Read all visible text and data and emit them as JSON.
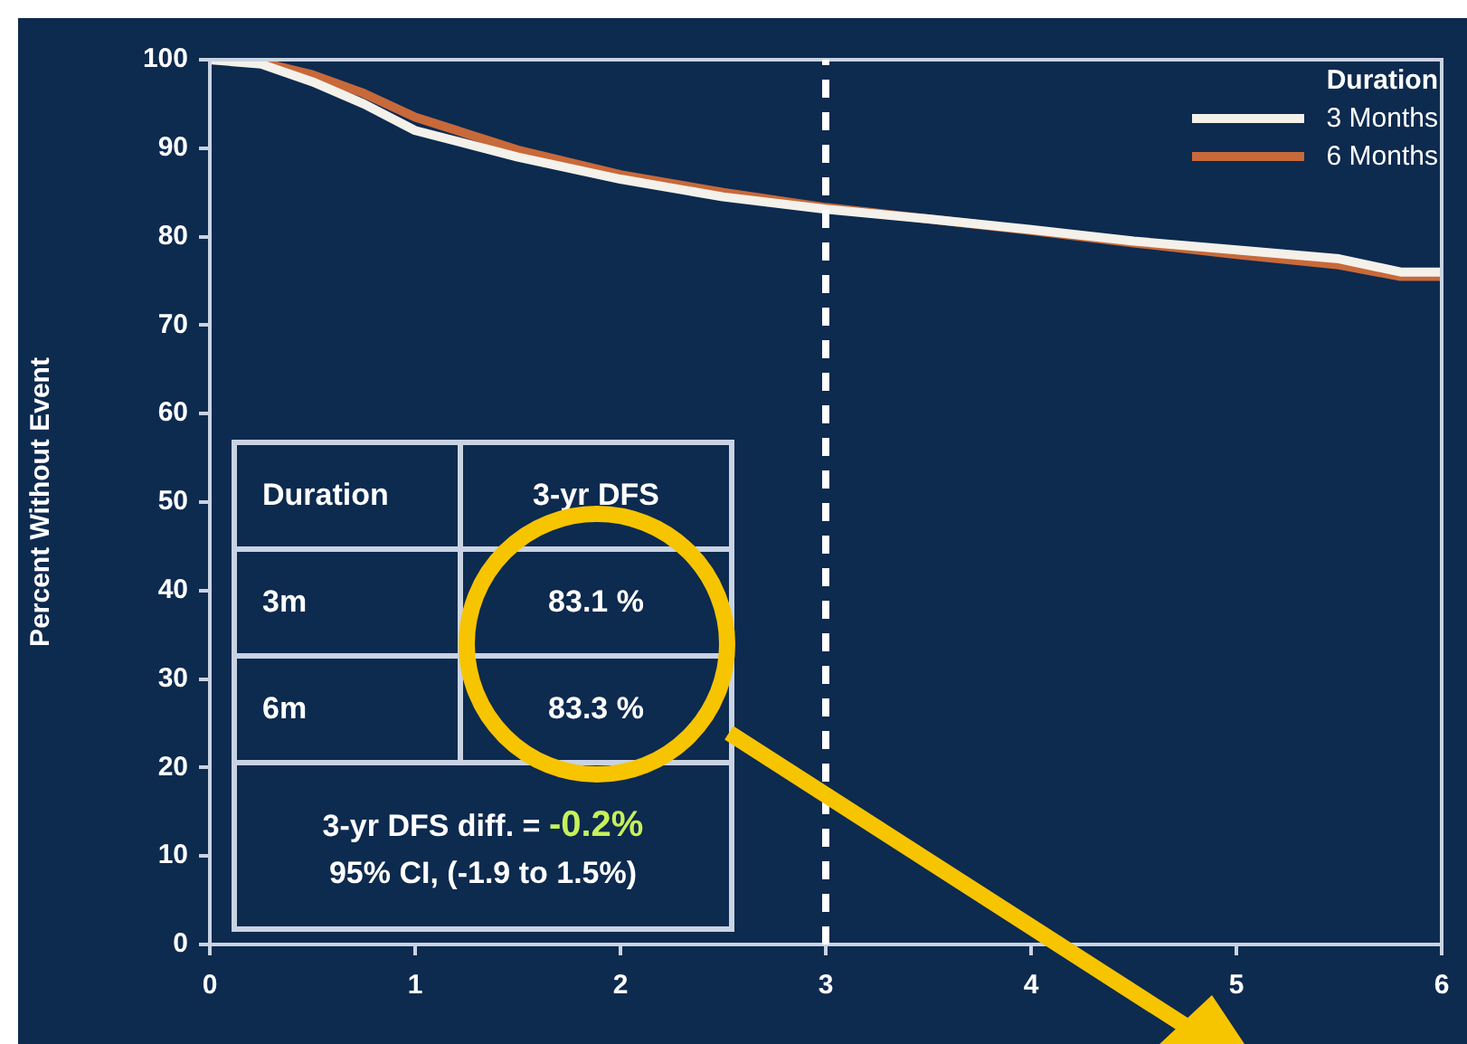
{
  "chart_data": {
    "type": "line",
    "ylabel": "Percent Without Event",
    "legend_title": "Duration",
    "legend": "top right",
    "grid": false,
    "marker": "none",
    "line_style": "solid",
    "x": [
      0,
      0.25,
      0.5,
      0.75,
      1,
      1.5,
      2,
      2.5,
      3,
      3.5,
      4,
      4.5,
      5,
      5.5,
      5.8,
      6
    ],
    "series": [
      {
        "name": "3 Months",
        "color": "#f4f1ea",
        "values": [
          100,
          99.5,
          97.5,
          95,
          92,
          89,
          86.5,
          84.5,
          83.1,
          82,
          80.8,
          79.5,
          78.5,
          77.5,
          76,
          76
        ]
      },
      {
        "name": "6 Months",
        "color": "#c8693a",
        "values": [
          100,
          99.7,
          98.3,
          96.2,
          93.5,
          89.8,
          87,
          85,
          83.3,
          82,
          80.7,
          79.3,
          78,
          76.8,
          75.5,
          75.5
        ]
      }
    ],
    "xlim": [
      0,
      6
    ],
    "xticks": [
      0,
      1,
      2,
      3,
      4,
      5,
      6
    ],
    "ylim": [
      0,
      100
    ],
    "yticks": [
      0,
      10,
      20,
      30,
      40,
      50,
      60,
      70,
      80,
      90,
      100
    ],
    "ref_lines": [
      {
        "axis": "x",
        "value": 3,
        "color": "#ffffff",
        "line_style": "dashed"
      }
    ],
    "annotations": [
      "Duration",
      "3-yr DFS",
      "3m",
      "83.1 %",
      "6m",
      "83.3 %",
      "3-yr DFS diff. = ",
      "-0.2%",
      "95% CI, (-1.9 to 1.5%)"
    ]
  }
}
